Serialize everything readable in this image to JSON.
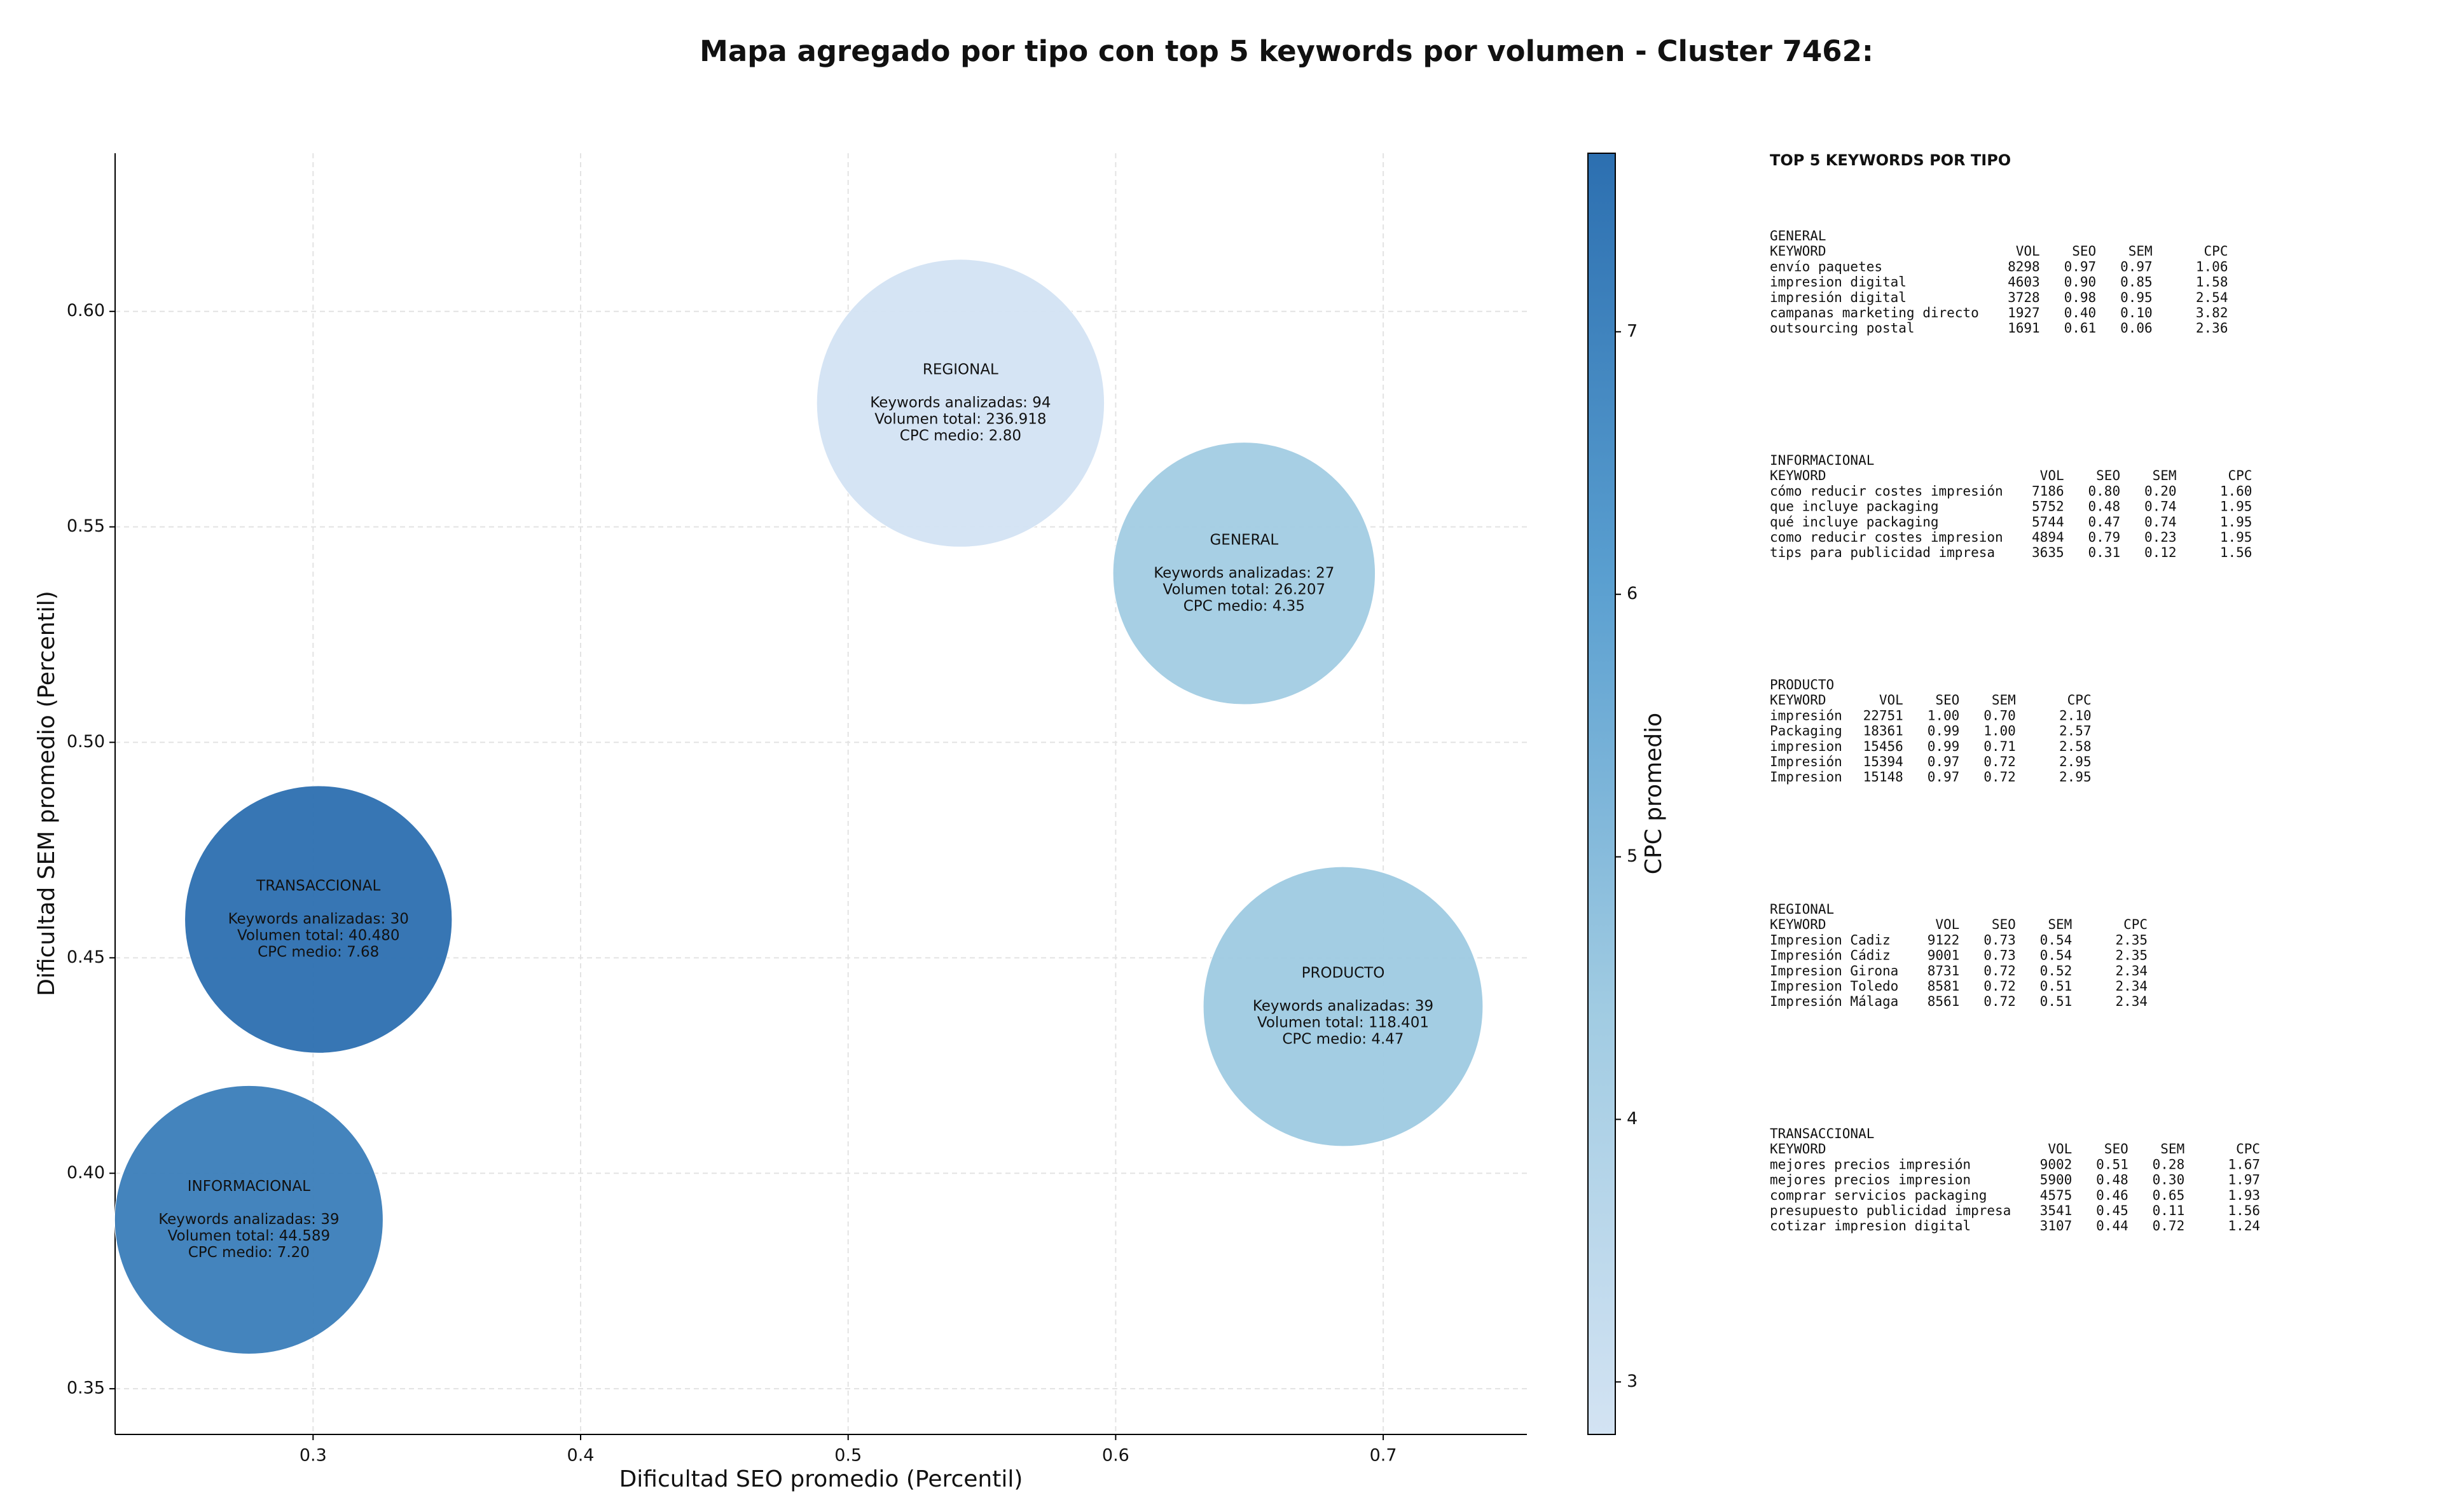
{
  "chart_data": {
    "type": "scatter",
    "title": "Mapa agregado por tipo con top 5 keywords por volumen - Cluster 7462:",
    "xlabel": "Dificultad SEO promedio (Percentil)",
    "ylabel": "Dificultad SEM promedio (Percentil)",
    "colorbar_label": "CPC promedio",
    "xlim": [
      0.226,
      0.7537
    ],
    "xticks": [
      {
        "value": 0.3,
        "label": "0.3"
      },
      {
        "value": 0.4,
        "label": "0.4"
      },
      {
        "value": 0.5,
        "label": "0.5"
      },
      {
        "value": 0.6,
        "label": "0.6"
      },
      {
        "value": 0.7,
        "label": "0.7"
      }
    ],
    "ylim": [
      0.3394,
      0.6367
    ],
    "yticks": [
      {
        "value": 0.35,
        "label": "0.35"
      },
      {
        "value": 0.4,
        "label": "0.40"
      },
      {
        "value": 0.45,
        "label": "0.45"
      },
      {
        "value": 0.5,
        "label": "0.50"
      },
      {
        "value": 0.55,
        "label": "0.55"
      },
      {
        "value": 0.6,
        "label": "0.60"
      }
    ],
    "clim": [
      2.8,
      7.68
    ],
    "cticks": [
      3,
      4,
      5,
      6,
      7
    ],
    "colormap": [
      "#d3e3f3",
      "#a0cbe2",
      "#5a9fd0",
      "#2c6fb0"
    ],
    "grid": true,
    "points": [
      {
        "name": "REGIONAL",
        "x": 0.542,
        "y": 0.5787,
        "volume": 236918,
        "cpc": 2.8,
        "details": [
          "Keywords analizadas: 94",
          "Volumen total: 236.918",
          "CPC medio: 2.80"
        ]
      },
      {
        "name": "GENERAL",
        "x": 0.648,
        "y": 0.5392,
        "volume": 26207,
        "cpc": 4.35,
        "details": [
          "Keywords analizadas: 27",
          "Volumen total: 26.207",
          "CPC medio: 4.35"
        ]
      },
      {
        "name": "TRANSACCIONAL",
        "x": 0.302,
        "y": 0.4589,
        "volume": 40480,
        "cpc": 7.68,
        "details": [
          "Keywords analizadas: 30",
          "Volumen total: 40.480",
          "CPC medio: 7.68"
        ]
      },
      {
        "name": "PRODUCTO",
        "x": 0.685,
        "y": 0.4387,
        "volume": 118401,
        "cpc": 4.47,
        "details": [
          "Keywords analizadas: 39",
          "Volumen total: 118.401",
          "CPC medio: 4.47"
        ]
      },
      {
        "name": "INFORMACIONAL",
        "x": 0.276,
        "y": 0.3892,
        "volume": 44589,
        "cpc": 7.2,
        "details": [
          "Keywords analizadas: 39",
          "Volumen total: 44.589",
          "CPC medio: 7.20"
        ]
      }
    ]
  },
  "keyword_panel": {
    "title": "TOP 5 KEYWORDS POR TIPO",
    "columns": [
      "KEYWORD",
      "VOL",
      "SEO",
      "SEM",
      "CPC"
    ],
    "groups": [
      {
        "name": "GENERAL",
        "rows": [
          [
            "envío paquetes",
            "8298",
            "0.97",
            "0.97",
            "1.06"
          ],
          [
            "impresion digital",
            "4603",
            "0.90",
            "0.85",
            "1.58"
          ],
          [
            "impresión digital",
            "3728",
            "0.98",
            "0.95",
            "2.54"
          ],
          [
            "campanas marketing directo",
            "1927",
            "0.40",
            "0.10",
            "3.82"
          ],
          [
            "outsourcing postal",
            "1691",
            "0.61",
            "0.06",
            "2.36"
          ]
        ]
      },
      {
        "name": "INFORMACIONAL",
        "rows": [
          [
            "cómo reducir costes impresión",
            "7186",
            "0.80",
            "0.20",
            "1.60"
          ],
          [
            "que incluye packaging",
            "5752",
            "0.48",
            "0.74",
            "1.95"
          ],
          [
            "qué incluye packaging",
            "5744",
            "0.47",
            "0.74",
            "1.95"
          ],
          [
            "como reducir costes impresion",
            "4894",
            "0.79",
            "0.23",
            "1.95"
          ],
          [
            "tips para publicidad impresa",
            "3635",
            "0.31",
            "0.12",
            "1.56"
          ]
        ]
      },
      {
        "name": "PRODUCTO",
        "rows": [
          [
            "impresión",
            "22751",
            "1.00",
            "0.70",
            "2.10"
          ],
          [
            "Packaging",
            "18361",
            "0.99",
            "1.00",
            "2.57"
          ],
          [
            "impresion",
            "15456",
            "0.99",
            "0.71",
            "2.58"
          ],
          [
            "Impresión",
            "15394",
            "0.97",
            "0.72",
            "2.95"
          ],
          [
            "Impresion",
            "15148",
            "0.97",
            "0.72",
            "2.95"
          ]
        ]
      },
      {
        "name": "REGIONAL",
        "rows": [
          [
            "Impresion Cadiz",
            "9122",
            "0.73",
            "0.54",
            "2.35"
          ],
          [
            "Impresión Cádiz",
            "9001",
            "0.73",
            "0.54",
            "2.35"
          ],
          [
            "Impresion Girona",
            "8731",
            "0.72",
            "0.52",
            "2.34"
          ],
          [
            "Impresion Toledo",
            "8581",
            "0.72",
            "0.51",
            "2.34"
          ],
          [
            "Impresión Málaga",
            "8561",
            "0.72",
            "0.51",
            "2.34"
          ]
        ]
      },
      {
        "name": "TRANSACCIONAL",
        "rows": [
          [
            "mejores precios impresión",
            "9002",
            "0.51",
            "0.28",
            "1.67"
          ],
          [
            "mejores precios impresion",
            "5900",
            "0.48",
            "0.30",
            "1.97"
          ],
          [
            "comprar servicios packaging",
            "4575",
            "0.46",
            "0.65",
            "1.93"
          ],
          [
            "presupuesto publicidad impresa",
            "3541",
            "0.45",
            "0.11",
            "1.56"
          ],
          [
            "cotizar impresion digital",
            "3107",
            "0.44",
            "0.72",
            "1.24"
          ]
        ]
      }
    ]
  }
}
